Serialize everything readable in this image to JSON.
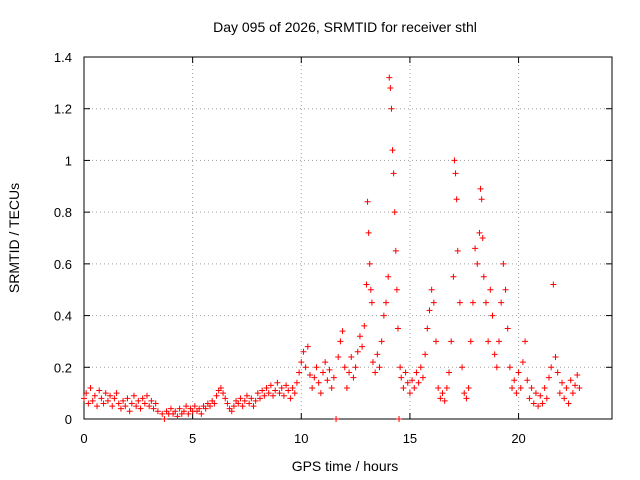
{
  "chart_data": {
    "type": "scatter",
    "title": "Day 095 of 2026, SRMTID for receiver sthl",
    "xlabel": "GPS time / hours",
    "ylabel": "SRMTID / TECUs",
    "xlim": [
      0,
      24.3
    ],
    "ylim": [
      0,
      1.4
    ],
    "xticks": [
      0,
      5,
      10,
      15,
      20
    ],
    "xtick_labels": [
      "0",
      "5",
      "10",
      "15",
      "20"
    ],
    "yticks": [
      0,
      0.2,
      0.4,
      0.6,
      0.8,
      1.0,
      1.2,
      1.4
    ],
    "ytick_labels": [
      "0",
      "0.2",
      "0.4",
      "0.6",
      "0.8",
      "1",
      "1.2",
      "1.4"
    ],
    "grid": true,
    "marker": "+",
    "color": "#ff0000",
    "series": [
      {
        "name": "SRMTID",
        "points": [
          [
            0.0,
            0.08
          ],
          [
            0.1,
            0.1
          ],
          [
            0.2,
            0.06
          ],
          [
            0.3,
            0.12
          ],
          [
            0.4,
            0.07
          ],
          [
            0.5,
            0.09
          ],
          [
            0.6,
            0.05
          ],
          [
            0.7,
            0.11
          ],
          [
            0.8,
            0.08
          ],
          [
            0.9,
            0.06
          ],
          [
            1.0,
            0.1
          ],
          [
            1.1,
            0.07
          ],
          [
            1.2,
            0.09
          ],
          [
            1.3,
            0.05
          ],
          [
            1.4,
            0.08
          ],
          [
            1.5,
            0.1
          ],
          [
            1.6,
            0.06
          ],
          [
            1.7,
            0.04
          ],
          [
            1.8,
            0.07
          ],
          [
            1.9,
            0.05
          ],
          [
            2.0,
            0.08
          ],
          [
            2.1,
            0.03
          ],
          [
            2.2,
            0.06
          ],
          [
            2.3,
            0.09
          ],
          [
            2.4,
            0.05
          ],
          [
            2.5,
            0.07
          ],
          [
            2.6,
            0.04
          ],
          [
            2.7,
            0.08
          ],
          [
            2.8,
            0.06
          ],
          [
            2.9,
            0.09
          ],
          [
            3.0,
            0.05
          ],
          [
            3.1,
            0.07
          ],
          [
            3.2,
            0.04
          ],
          [
            3.3,
            0.06
          ],
          [
            3.4,
            0.03
          ],
          [
            3.6,
            0.02
          ],
          [
            3.7,
            0.0
          ],
          [
            3.8,
            0.03
          ],
          [
            3.9,
            0.02
          ],
          [
            4.0,
            0.04
          ],
          [
            4.1,
            0.02
          ],
          [
            4.2,
            0.03
          ],
          [
            4.3,
            0.01
          ],
          [
            4.4,
            0.04
          ],
          [
            4.5,
            0.02
          ],
          [
            4.6,
            0.03
          ],
          [
            4.7,
            0.05
          ],
          [
            4.8,
            0.02
          ],
          [
            4.9,
            0.04
          ],
          [
            5.0,
            0.03
          ],
          [
            5.1,
            0.05
          ],
          [
            5.2,
            0.03
          ],
          [
            5.3,
            0.04
          ],
          [
            5.4,
            0.02
          ],
          [
            5.5,
            0.05
          ],
          [
            5.6,
            0.04
          ],
          [
            5.7,
            0.06
          ],
          [
            5.8,
            0.05
          ],
          [
            5.9,
            0.07
          ],
          [
            6.0,
            0.06
          ],
          [
            6.1,
            0.09
          ],
          [
            6.2,
            0.11
          ],
          [
            6.3,
            0.12
          ],
          [
            6.4,
            0.1
          ],
          [
            6.5,
            0.08
          ],
          [
            6.6,
            0.06
          ],
          [
            6.7,
            0.04
          ],
          [
            6.8,
            0.03
          ],
          [
            6.9,
            0.05
          ],
          [
            7.0,
            0.07
          ],
          [
            7.1,
            0.06
          ],
          [
            7.2,
            0.08
          ],
          [
            7.3,
            0.05
          ],
          [
            7.4,
            0.07
          ],
          [
            7.5,
            0.09
          ],
          [
            7.6,
            0.06
          ],
          [
            7.7,
            0.08
          ],
          [
            7.8,
            0.05
          ],
          [
            7.9,
            0.07
          ],
          [
            8.0,
            0.1
          ],
          [
            8.1,
            0.08
          ],
          [
            8.2,
            0.11
          ],
          [
            8.3,
            0.09
          ],
          [
            8.4,
            0.12
          ],
          [
            8.5,
            0.1
          ],
          [
            8.6,
            0.13
          ],
          [
            8.7,
            0.09
          ],
          [
            8.8,
            0.11
          ],
          [
            8.9,
            0.14
          ],
          [
            9.0,
            0.1
          ],
          [
            9.1,
            0.12
          ],
          [
            9.2,
            0.09
          ],
          [
            9.3,
            0.13
          ],
          [
            9.4,
            0.11
          ],
          [
            9.5,
            0.08
          ],
          [
            9.6,
            0.12
          ],
          [
            9.7,
            0.1
          ],
          [
            9.8,
            0.14
          ],
          [
            9.9,
            0.18
          ],
          [
            10.0,
            0.22
          ],
          [
            10.1,
            0.26
          ],
          [
            10.2,
            0.2
          ],
          [
            10.3,
            0.28
          ],
          [
            10.4,
            0.17
          ],
          [
            10.5,
            0.12
          ],
          [
            10.6,
            0.16
          ],
          [
            10.7,
            0.2
          ],
          [
            10.8,
            0.14
          ],
          [
            10.9,
            0.1
          ],
          [
            11.0,
            0.18
          ],
          [
            11.1,
            0.22
          ],
          [
            11.2,
            0.15
          ],
          [
            11.3,
            0.19
          ],
          [
            11.4,
            0.12
          ],
          [
            11.5,
            0.16
          ],
          [
            11.6,
            0.0
          ],
          [
            11.7,
            0.24
          ],
          [
            11.8,
            0.3
          ],
          [
            11.9,
            0.34
          ],
          [
            12.0,
            0.2
          ],
          [
            12.1,
            0.12
          ],
          [
            12.2,
            0.18
          ],
          [
            12.3,
            0.24
          ],
          [
            12.4,
            0.16
          ],
          [
            12.5,
            0.2
          ],
          [
            12.6,
            0.26
          ],
          [
            12.7,
            0.32
          ],
          [
            12.8,
            0.28
          ],
          [
            12.9,
            0.36
          ],
          [
            13.0,
            0.52
          ],
          [
            13.05,
            0.84
          ],
          [
            13.1,
            0.72
          ],
          [
            13.15,
            0.6
          ],
          [
            13.2,
            0.5
          ],
          [
            13.25,
            0.45
          ],
          [
            13.3,
            0.22
          ],
          [
            13.4,
            0.18
          ],
          [
            13.5,
            0.25
          ],
          [
            13.6,
            0.2
          ],
          [
            13.7,
            0.3
          ],
          [
            13.8,
            0.4
          ],
          [
            13.9,
            0.45
          ],
          [
            14.0,
            0.55
          ],
          [
            14.05,
            1.32
          ],
          [
            14.1,
            1.28
          ],
          [
            14.15,
            1.2
          ],
          [
            14.2,
            1.04
          ],
          [
            14.25,
            0.95
          ],
          [
            14.3,
            0.8
          ],
          [
            14.35,
            0.65
          ],
          [
            14.4,
            0.5
          ],
          [
            14.45,
            0.35
          ],
          [
            14.5,
            0.0
          ],
          [
            14.55,
            0.2
          ],
          [
            14.6,
            0.16
          ],
          [
            14.7,
            0.12
          ],
          [
            14.8,
            0.18
          ],
          [
            14.9,
            0.14
          ],
          [
            15.0,
            0.1
          ],
          [
            15.1,
            0.15
          ],
          [
            15.2,
            0.12
          ],
          [
            15.3,
            0.18
          ],
          [
            15.4,
            0.14
          ],
          [
            15.5,
            0.2
          ],
          [
            15.6,
            0.16
          ],
          [
            15.7,
            0.25
          ],
          [
            15.8,
            0.35
          ],
          [
            15.9,
            0.42
          ],
          [
            16.0,
            0.5
          ],
          [
            16.1,
            0.45
          ],
          [
            16.2,
            0.3
          ],
          [
            16.3,
            0.12
          ],
          [
            16.4,
            0.08
          ],
          [
            16.5,
            0.1
          ],
          [
            16.6,
            0.07
          ],
          [
            16.7,
            0.12
          ],
          [
            16.8,
            0.18
          ],
          [
            16.9,
            0.3
          ],
          [
            17.0,
            0.55
          ],
          [
            17.05,
            1.0
          ],
          [
            17.1,
            0.95
          ],
          [
            17.15,
            0.85
          ],
          [
            17.2,
            0.65
          ],
          [
            17.3,
            0.45
          ],
          [
            17.4,
            0.2
          ],
          [
            17.5,
            0.1
          ],
          [
            17.6,
            0.08
          ],
          [
            17.7,
            0.12
          ],
          [
            17.8,
            0.3
          ],
          [
            17.9,
            0.45
          ],
          [
            18.0,
            0.66
          ],
          [
            18.1,
            0.6
          ],
          [
            18.2,
            0.72
          ],
          [
            18.25,
            0.89
          ],
          [
            18.3,
            0.85
          ],
          [
            18.35,
            0.7
          ],
          [
            18.4,
            0.55
          ],
          [
            18.5,
            0.45
          ],
          [
            18.6,
            0.3
          ],
          [
            18.7,
            0.5
          ],
          [
            18.8,
            0.4
          ],
          [
            18.9,
            0.25
          ],
          [
            19.0,
            0.2
          ],
          [
            19.1,
            0.3
          ],
          [
            19.2,
            0.45
          ],
          [
            19.3,
            0.6
          ],
          [
            19.4,
            0.5
          ],
          [
            19.5,
            0.35
          ],
          [
            19.6,
            0.2
          ],
          [
            19.7,
            0.12
          ],
          [
            19.8,
            0.15
          ],
          [
            19.9,
            0.1
          ],
          [
            20.0,
            0.18
          ],
          [
            20.1,
            0.12
          ],
          [
            20.2,
            0.22
          ],
          [
            20.3,
            0.3
          ],
          [
            20.4,
            0.15
          ],
          [
            20.5,
            0.08
          ],
          [
            20.6,
            0.12
          ],
          [
            20.7,
            0.06
          ],
          [
            20.8,
            0.1
          ],
          [
            20.9,
            0.05
          ],
          [
            21.0,
            0.09
          ],
          [
            21.1,
            0.06
          ],
          [
            21.2,
            0.12
          ],
          [
            21.3,
            0.08
          ],
          [
            21.4,
            0.16
          ],
          [
            21.5,
            0.2
          ],
          [
            21.6,
            0.52
          ],
          [
            21.7,
            0.24
          ],
          [
            21.8,
            0.18
          ],
          [
            21.9,
            0.1
          ],
          [
            22.0,
            0.14
          ],
          [
            22.1,
            0.08
          ],
          [
            22.2,
            0.12
          ],
          [
            22.3,
            0.06
          ],
          [
            22.4,
            0.15
          ],
          [
            22.5,
            0.1
          ],
          [
            22.6,
            0.13
          ],
          [
            22.7,
            0.17
          ],
          [
            22.8,
            0.12
          ]
        ]
      }
    ]
  }
}
